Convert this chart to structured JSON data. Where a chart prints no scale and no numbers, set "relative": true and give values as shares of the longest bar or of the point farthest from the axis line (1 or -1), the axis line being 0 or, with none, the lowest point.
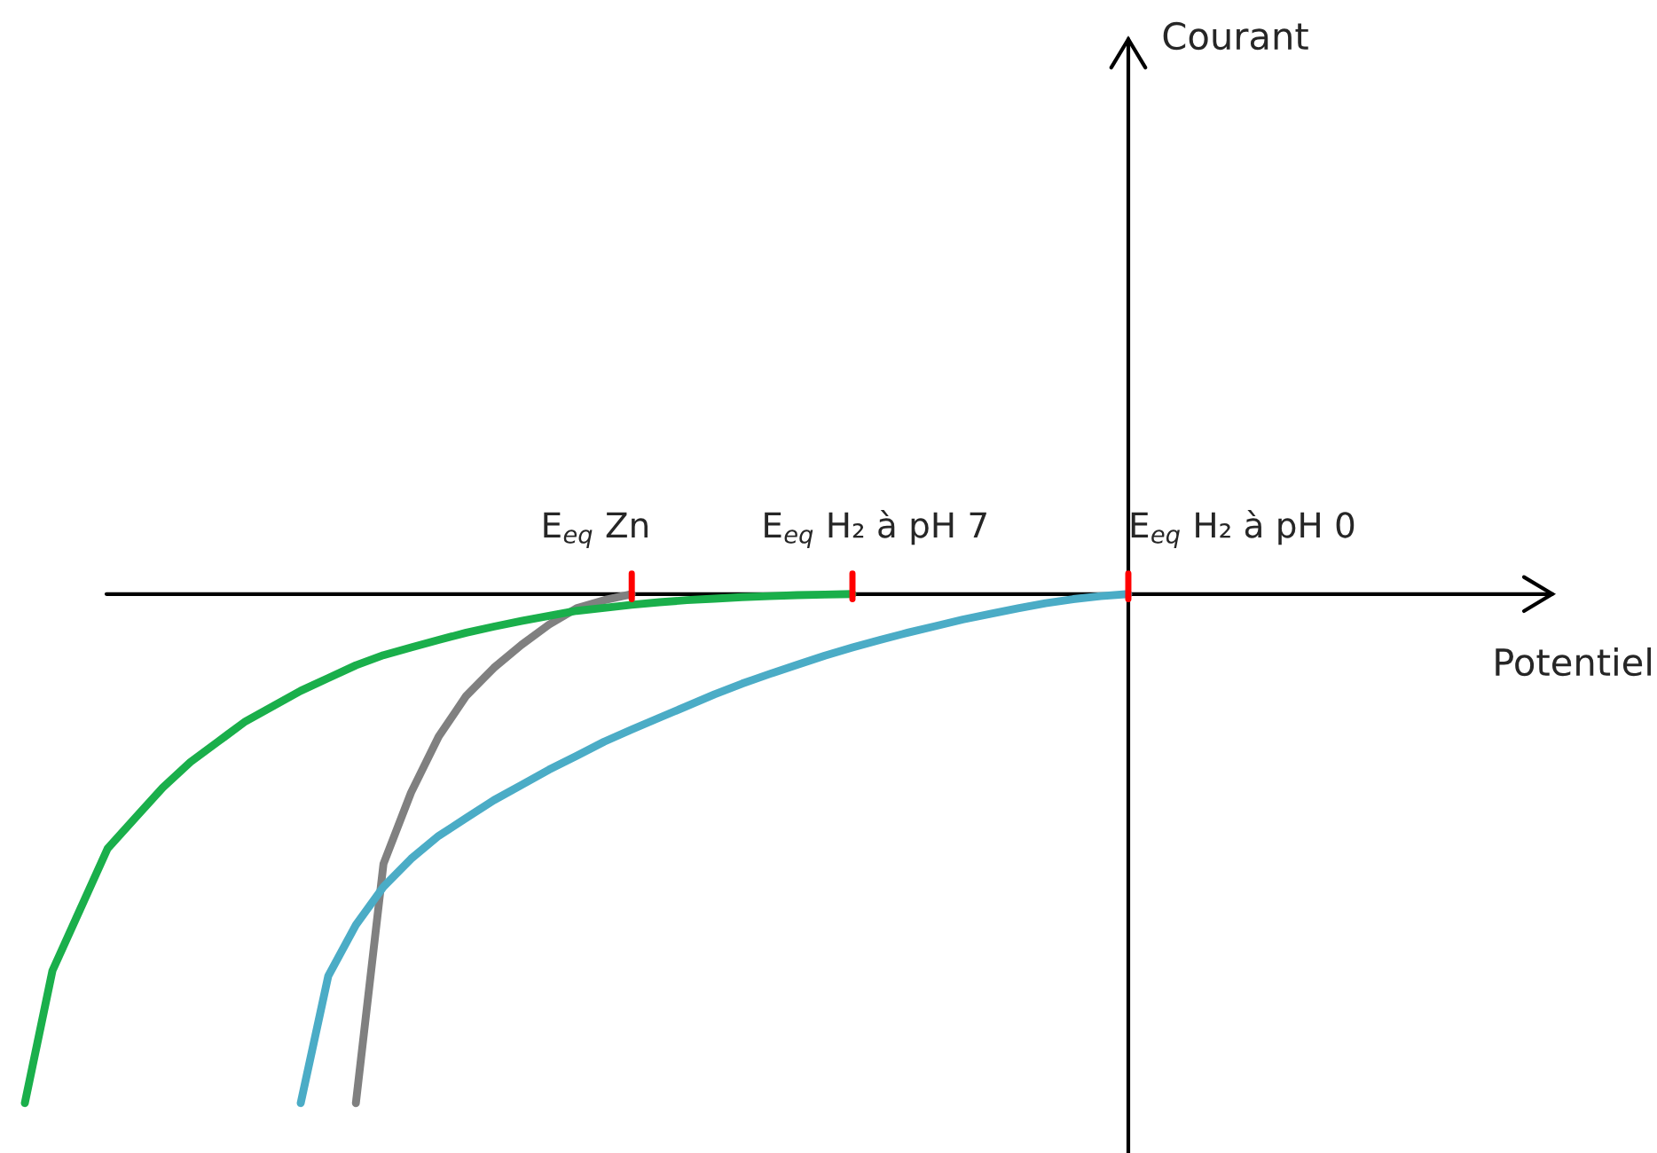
{
  "chart_data": {
    "type": "line",
    "relative": true,
    "line_style": "solid",
    "marker": "none",
    "categories": [
      null,
      null,
      null,
      null,
      null,
      null,
      null,
      null,
      null,
      null,
      null,
      null,
      null,
      null,
      null,
      null,
      null,
      null,
      null,
      null,
      null,
      null,
      null,
      null,
      null,
      null,
      null,
      null,
      null,
      null,
      null,
      null,
      null,
      null,
      null,
      null,
      null,
      null,
      null,
      null,
      null
    ],
    "series": [
      {
        "color": "#808080",
        "values": [
          null,
          null,
          null,
          null,
          null,
          null,
          null,
          null,
          null,
          null,
          null,
          null,
          -1.0,
          -0.53,
          -0.39,
          -0.28,
          -0.2,
          -0.145,
          -0.1,
          -0.06,
          -0.028,
          -0.012,
          0,
          null,
          null,
          null,
          null,
          null,
          null,
          null,
          null,
          null,
          null,
          null,
          null,
          null,
          null,
          null,
          null,
          null,
          null
        ]
      },
      {
        "color": "#1aaf4b",
        "values": [
          -1.0,
          -0.74,
          -0.62,
          -0.5,
          -0.44,
          -0.38,
          -0.33,
          -0.29,
          -0.25,
          -0.22,
          -0.19,
          -0.165,
          -0.14,
          -0.12,
          -0.105,
          -0.09,
          -0.076,
          -0.064,
          -0.053,
          -0.043,
          -0.033,
          -0.027,
          -0.021,
          -0.016,
          -0.012,
          -0.009,
          -0.006,
          -0.004,
          -0.002,
          -0.001,
          0,
          null,
          null,
          null,
          null,
          null,
          null,
          null,
          null,
          null,
          null
        ]
      },
      {
        "color": "#4bacc6",
        "values": [
          null,
          null,
          null,
          null,
          null,
          null,
          null,
          null,
          null,
          null,
          -1.0,
          -0.75,
          -0.65,
          -0.575,
          -0.52,
          -0.475,
          -0.44,
          -0.405,
          -0.375,
          -0.345,
          -0.318,
          -0.29,
          -0.266,
          -0.243,
          -0.22,
          -0.197,
          -0.176,
          -0.157,
          -0.139,
          -0.121,
          -0.105,
          -0.09,
          -0.076,
          -0.063,
          -0.05,
          -0.039,
          -0.028,
          -0.018,
          -0.01,
          -0.004,
          0
        ]
      }
    ],
    "annotations": [
      "E$_{eq}$ Zn",
      "E$_{eq}$ H₂ à pH 7",
      "E$_{eq}$ H₂ à pH 0",
      "Courant",
      "Potentiel"
    ]
  }
}
